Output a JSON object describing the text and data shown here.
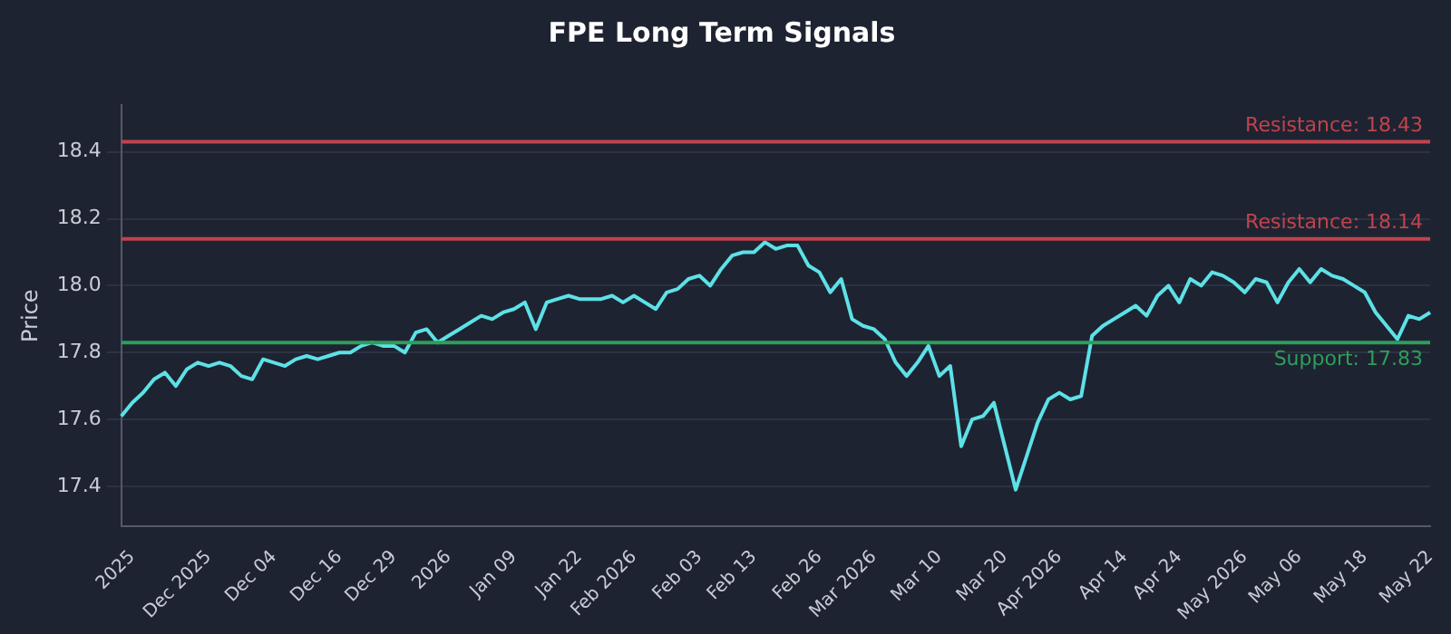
{
  "chart_data": {
    "type": "line",
    "title": "FPE Long Term Signals",
    "ylabel": "Price",
    "categories": [
      null,
      "2025",
      null,
      null,
      null,
      null,
      null,
      null,
      "Dec 2025",
      null,
      null,
      null,
      null,
      null,
      "Dec 04",
      null,
      null,
      null,
      null,
      null,
      "Dec 16",
      null,
      null,
      null,
      null,
      "Dec 29",
      null,
      null,
      null,
      null,
      "2026",
      null,
      null,
      null,
      null,
      null,
      "Jan 09",
      null,
      null,
      null,
      null,
      null,
      "Jan 22",
      null,
      null,
      null,
      null,
      "Feb 2026",
      null,
      null,
      null,
      null,
      null,
      "Feb 03",
      null,
      null,
      null,
      null,
      "Feb 13",
      null,
      null,
      null,
      null,
      null,
      "Feb 26",
      null,
      null,
      null,
      null,
      "Mar 2026",
      null,
      null,
      null,
      null,
      null,
      "Mar 10",
      null,
      null,
      null,
      null,
      null,
      "Mar 20",
      null,
      null,
      null,
      null,
      "Apr 2026",
      null,
      null,
      null,
      null,
      null,
      "Apr 14",
      null,
      null,
      null,
      null,
      "Apr 24",
      null,
      null,
      null,
      null,
      null,
      "May 2026",
      null,
      null,
      null,
      null,
      "May 06",
      null,
      null,
      null,
      null,
      null,
      "May 18",
      null,
      null,
      null,
      null,
      null,
      "May 22"
    ],
    "series": [
      {
        "color": "#5ce1e6",
        "values": [
          17.61,
          17.65,
          17.68,
          17.72,
          17.74,
          17.7,
          17.75,
          17.77,
          17.76,
          17.77,
          17.76,
          17.73,
          17.72,
          17.78,
          17.77,
          17.76,
          17.78,
          17.79,
          17.78,
          17.79,
          17.8,
          17.8,
          17.82,
          17.83,
          17.82,
          17.82,
          17.8,
          17.86,
          17.87,
          17.83,
          17.85,
          17.87,
          17.89,
          17.91,
          17.9,
          17.92,
          17.93,
          17.95,
          17.87,
          17.95,
          17.96,
          17.97,
          17.96,
          17.96,
          17.96,
          17.97,
          17.95,
          17.97,
          17.95,
          17.93,
          17.98,
          17.99,
          18.02,
          18.03,
          18.0,
          18.05,
          18.09,
          18.1,
          18.1,
          18.13,
          18.11,
          18.12,
          18.12,
          18.06,
          18.04,
          17.98,
          18.02,
          17.9,
          17.88,
          17.87,
          17.84,
          17.77,
          17.73,
          17.77,
          17.82,
          17.73,
          17.76,
          17.52,
          17.6,
          17.61,
          17.65,
          17.52,
          17.39,
          17.49,
          17.59,
          17.66,
          17.68,
          17.66,
          17.67,
          17.85,
          17.88,
          17.9,
          17.92,
          17.94,
          17.91,
          17.97,
          18.0,
          17.95,
          18.02,
          18.0,
          18.04,
          18.03,
          18.01,
          17.98,
          18.02,
          18.01,
          17.95,
          18.01,
          18.05,
          18.01,
          18.05,
          18.03,
          18.02,
          18.0,
          17.98,
          17.92,
          17.88,
          17.84,
          17.91,
          17.9,
          17.92
        ]
      }
    ],
    "ylim": [
      17.28,
      18.54
    ],
    "yticks": [
      17.4,
      17.6,
      17.8,
      {
        "value": 18,
        "label": "18.0"
      },
      18.2,
      18.4
    ],
    "grid": "y",
    "legend": false,
    "marker": "none",
    "line_style": "solid",
    "ref_lines": [
      {
        "axis": "y",
        "value": 18.43,
        "label": "Resistance: 18.43",
        "color": "#c0434d"
      },
      {
        "axis": "y",
        "value": 18.14,
        "label": "Resistance: 18.14",
        "color": "#c0434d"
      },
      {
        "axis": "y",
        "value": 17.83,
        "label": "Support: 17.83",
        "color": "#2e9e5a"
      }
    ]
  }
}
